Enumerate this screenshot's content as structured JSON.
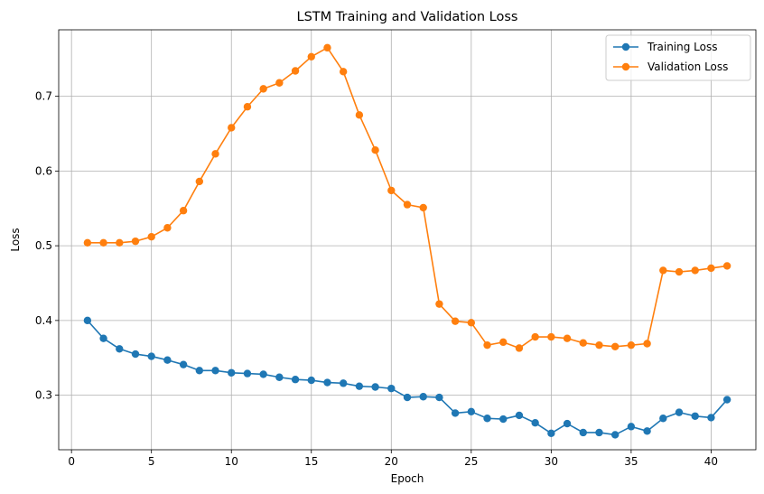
{
  "chart_data": {
    "type": "line",
    "title": "LSTM Training and Validation Loss",
    "xlabel": "Epoch",
    "ylabel": "Loss",
    "xlim": [
      -0.8,
      42.8
    ],
    "ylim": [
      0.227,
      0.789
    ],
    "xticks": [
      0,
      5,
      10,
      15,
      20,
      25,
      30,
      35,
      40
    ],
    "yticks": [
      0.3,
      0.4,
      0.5,
      0.6,
      0.7
    ],
    "grid": true,
    "legend_position": "top-right",
    "x": [
      1,
      2,
      3,
      4,
      5,
      6,
      7,
      8,
      9,
      10,
      11,
      12,
      13,
      14,
      15,
      16,
      17,
      18,
      19,
      20,
      21,
      22,
      23,
      24,
      25,
      26,
      27,
      28,
      29,
      30,
      31,
      32,
      33,
      34,
      35,
      36,
      37,
      38,
      39,
      40,
      41
    ],
    "series": [
      {
        "name": "Training Loss",
        "color": "#1f77b4",
        "marker": "circle",
        "values": [
          0.4,
          0.376,
          0.362,
          0.355,
          0.352,
          0.347,
          0.341,
          0.333,
          0.333,
          0.33,
          0.329,
          0.328,
          0.324,
          0.321,
          0.32,
          0.317,
          0.316,
          0.312,
          0.311,
          0.309,
          0.297,
          0.298,
          0.297,
          0.276,
          0.278,
          0.269,
          0.268,
          0.273,
          0.263,
          0.249,
          0.262,
          0.25,
          0.25,
          0.247,
          0.258,
          0.252,
          0.269,
          0.277,
          0.272,
          0.27,
          0.294
        ]
      },
      {
        "name": "Validation Loss",
        "color": "#ff7f0e",
        "marker": "circle",
        "values": [
          0.504,
          0.504,
          0.504,
          0.506,
          0.512,
          0.524,
          0.547,
          0.586,
          0.623,
          0.658,
          0.686,
          0.71,
          0.718,
          0.734,
          0.753,
          0.765,
          0.733,
          0.675,
          0.628,
          0.574,
          0.555,
          0.551,
          0.422,
          0.399,
          0.397,
          0.367,
          0.371,
          0.363,
          0.378,
          0.378,
          0.376,
          0.37,
          0.367,
          0.365,
          0.367,
          0.369,
          0.467,
          0.465,
          0.467,
          0.47,
          0.473
        ]
      }
    ]
  }
}
